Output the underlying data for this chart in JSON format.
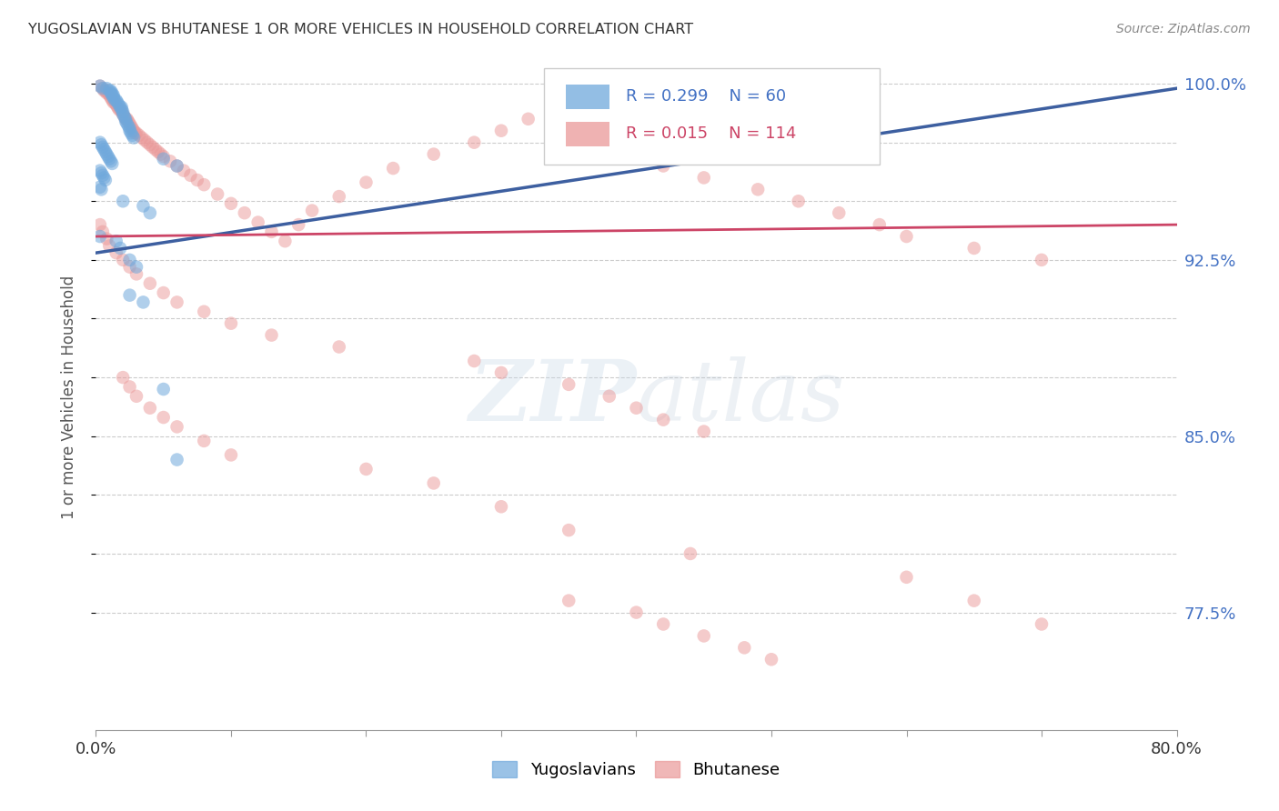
{
  "title": "YUGOSLAVIAN VS BHUTANESE 1 OR MORE VEHICLES IN HOUSEHOLD CORRELATION CHART",
  "source": "Source: ZipAtlas.com",
  "ylabel": "1 or more Vehicles in Household",
  "x_min": 0.0,
  "x_max": 0.8,
  "y_min": 0.725,
  "y_max": 1.008,
  "blue_color": "#6fa8dc",
  "pink_color": "#ea9999",
  "blue_line_color": "#3d5fa0",
  "pink_line_color": "#cc4466",
  "blue_R": 0.299,
  "blue_N": 60,
  "pink_R": 0.015,
  "pink_N": 114,
  "blue_line_x0": 0.0,
  "blue_line_y0": 0.928,
  "blue_line_x1": 0.8,
  "blue_line_y1": 0.998,
  "pink_line_x0": 0.0,
  "pink_line_y0": 0.935,
  "pink_line_x1": 0.8,
  "pink_line_y1": 0.94,
  "yug_x": [
    0.003,
    0.005,
    0.008,
    0.01,
    0.011,
    0.011,
    0.012,
    0.012,
    0.013,
    0.013,
    0.014,
    0.015,
    0.016,
    0.017,
    0.018,
    0.019,
    0.019,
    0.02,
    0.02,
    0.021,
    0.022,
    0.022,
    0.023,
    0.024,
    0.025,
    0.025,
    0.026,
    0.027,
    0.028,
    0.003,
    0.004,
    0.005,
    0.006,
    0.007,
    0.008,
    0.009,
    0.01,
    0.011,
    0.012,
    0.003,
    0.004,
    0.005,
    0.006,
    0.007,
    0.003,
    0.004,
    0.05,
    0.06,
    0.02,
    0.035,
    0.04,
    0.003,
    0.015,
    0.018,
    0.025,
    0.03,
    0.025,
    0.035,
    0.05,
    0.06
  ],
  "yug_y": [
    0.999,
    0.998,
    0.998,
    0.997,
    0.997,
    0.996,
    0.996,
    0.995,
    0.995,
    0.994,
    0.993,
    0.993,
    0.992,
    0.991,
    0.99,
    0.99,
    0.989,
    0.988,
    0.987,
    0.986,
    0.985,
    0.984,
    0.983,
    0.982,
    0.981,
    0.98,
    0.979,
    0.978,
    0.977,
    0.975,
    0.974,
    0.973,
    0.972,
    0.971,
    0.97,
    0.969,
    0.968,
    0.967,
    0.966,
    0.963,
    0.962,
    0.961,
    0.96,
    0.959,
    0.956,
    0.955,
    0.968,
    0.965,
    0.95,
    0.948,
    0.945,
    0.935,
    0.933,
    0.93,
    0.925,
    0.922,
    0.91,
    0.907,
    0.87,
    0.84
  ],
  "bhu_x": [
    0.003,
    0.005,
    0.006,
    0.007,
    0.008,
    0.009,
    0.01,
    0.011,
    0.012,
    0.013,
    0.014,
    0.015,
    0.016,
    0.017,
    0.018,
    0.019,
    0.02,
    0.021,
    0.022,
    0.023,
    0.024,
    0.025,
    0.026,
    0.027,
    0.028,
    0.029,
    0.03,
    0.032,
    0.034,
    0.036,
    0.038,
    0.04,
    0.042,
    0.044,
    0.046,
    0.048,
    0.05,
    0.055,
    0.06,
    0.065,
    0.07,
    0.075,
    0.08,
    0.09,
    0.1,
    0.11,
    0.12,
    0.13,
    0.14,
    0.15,
    0.16,
    0.18,
    0.2,
    0.22,
    0.25,
    0.28,
    0.3,
    0.32,
    0.35,
    0.38,
    0.4,
    0.42,
    0.45,
    0.49,
    0.52,
    0.55,
    0.58,
    0.6,
    0.65,
    0.7,
    0.003,
    0.005,
    0.008,
    0.01,
    0.015,
    0.02,
    0.025,
    0.03,
    0.04,
    0.05,
    0.06,
    0.08,
    0.1,
    0.13,
    0.18,
    0.28,
    0.3,
    0.35,
    0.38,
    0.4,
    0.42,
    0.45,
    0.02,
    0.025,
    0.03,
    0.04,
    0.05,
    0.06,
    0.08,
    0.1,
    0.2,
    0.25,
    0.3,
    0.35,
    0.44,
    0.6,
    0.65,
    0.7,
    0.35,
    0.4,
    0.42,
    0.45,
    0.48,
    0.5
  ],
  "bhu_y": [
    0.999,
    0.998,
    0.997,
    0.997,
    0.996,
    0.996,
    0.995,
    0.994,
    0.993,
    0.992,
    0.992,
    0.991,
    0.99,
    0.989,
    0.989,
    0.988,
    0.987,
    0.986,
    0.985,
    0.985,
    0.984,
    0.983,
    0.982,
    0.981,
    0.98,
    0.979,
    0.979,
    0.978,
    0.977,
    0.976,
    0.975,
    0.974,
    0.973,
    0.972,
    0.971,
    0.97,
    0.969,
    0.967,
    0.965,
    0.963,
    0.961,
    0.959,
    0.957,
    0.953,
    0.949,
    0.945,
    0.941,
    0.937,
    0.933,
    0.94,
    0.946,
    0.952,
    0.958,
    0.964,
    0.97,
    0.975,
    0.98,
    0.985,
    0.99,
    0.994,
    0.97,
    0.965,
    0.96,
    0.955,
    0.95,
    0.945,
    0.94,
    0.935,
    0.93,
    0.925,
    0.94,
    0.937,
    0.934,
    0.931,
    0.928,
    0.925,
    0.922,
    0.919,
    0.915,
    0.911,
    0.907,
    0.903,
    0.898,
    0.893,
    0.888,
    0.882,
    0.877,
    0.872,
    0.867,
    0.862,
    0.857,
    0.852,
    0.875,
    0.871,
    0.867,
    0.862,
    0.858,
    0.854,
    0.848,
    0.842,
    0.836,
    0.83,
    0.82,
    0.81,
    0.8,
    0.79,
    0.78,
    0.77,
    0.78,
    0.775,
    0.77,
    0.765,
    0.76,
    0.755
  ]
}
